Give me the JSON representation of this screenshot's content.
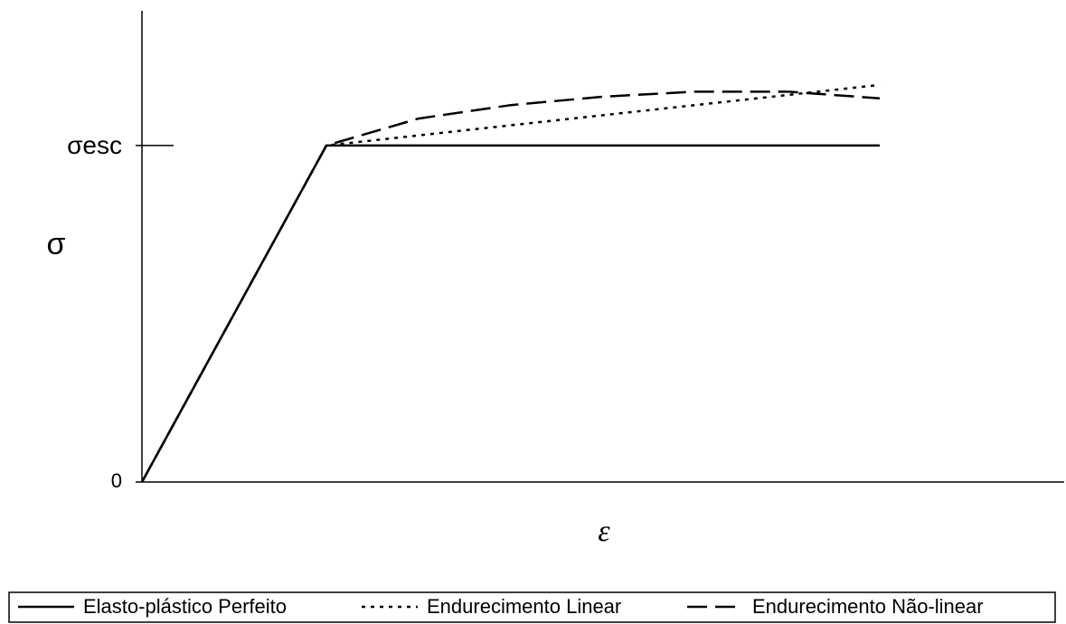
{
  "chart_data": {
    "type": "line",
    "x_label": "ε",
    "y_label": "σ",
    "x": [
      0,
      1,
      1.5,
      2,
      2.5,
      3,
      3.5,
      4
    ],
    "series": [
      {
        "name": "Elasto-plástico Perfeito",
        "color": "#000000",
        "dash": "solid",
        "values": [
          0,
          1,
          1,
          1,
          1,
          1,
          1,
          1
        ]
      },
      {
        "name": "Endurecimento Linear",
        "color": "#000000",
        "dash": "dotted",
        "values": [
          0,
          1,
          1.03,
          1.06,
          1.09,
          1.12,
          1.15,
          1.18
        ]
      },
      {
        "name": "Endurecimento Não-linear",
        "color": "#000000",
        "dash": "dashed",
        "values": [
          0,
          1,
          1.08,
          1.12,
          1.145,
          1.16,
          1.16,
          1.14
        ]
      }
    ],
    "xlim": [
      0,
      5
    ],
    "ylim": [
      0,
      1.4
    ],
    "yticks": [
      0,
      {
        "value": 1,
        "label": "σesc"
      }
    ],
    "grid": false,
    "legend": "bottom"
  }
}
